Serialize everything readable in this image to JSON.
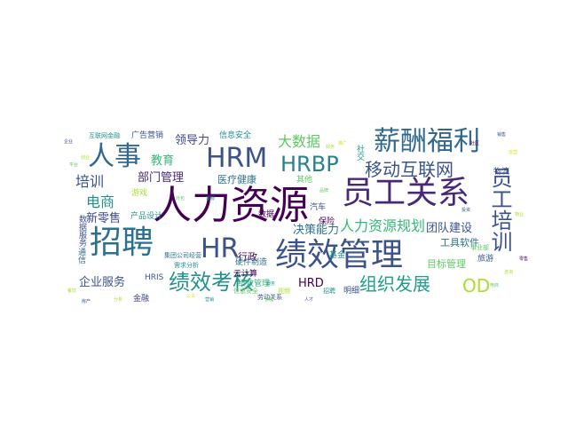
{
  "palette": {
    "c1": "#440154",
    "c2": "#3b528b",
    "c3": "#2c728e",
    "c4": "#21918c",
    "c5": "#28ae80",
    "c6": "#5ec962",
    "c7": "#addc30",
    "c8": "#d9e51e"
  },
  "words": [
    {
      "text": "人力资源",
      "color": "#440154"
    },
    {
      "text": "招聘",
      "color": "#2c728e"
    },
    {
      "text": "绩效管理",
      "color": "#3b528b"
    },
    {
      "text": "员工关系",
      "color": "#482878"
    },
    {
      "text": "HRM",
      "color": "#3b528b"
    },
    {
      "text": "人事",
      "color": "#31688e"
    },
    {
      "text": "薪酬福利",
      "color": "#31688e"
    },
    {
      "text": "HR",
      "color": "#3b528b"
    },
    {
      "text": "绩效考核",
      "color": "#21918c"
    },
    {
      "text": "HRBP",
      "color": "#26828e"
    },
    {
      "text": "员工培训",
      "color": "#3b528b"
    },
    {
      "text": "移动互联网",
      "color": "#3b528b"
    },
    {
      "text": "组织发展",
      "color": "#1f9e89"
    },
    {
      "text": "人力资源规划",
      "color": "#35b779"
    },
    {
      "text": "OD",
      "color": "#addc30"
    },
    {
      "text": "大数据",
      "color": "#5ec962"
    },
    {
      "text": "培训",
      "color": "#3b528b"
    },
    {
      "text": "电商",
      "color": "#21918c"
    },
    {
      "text": "决策能力",
      "color": "#2c728e"
    },
    {
      "text": "部门管理",
      "color": "#482878"
    },
    {
      "text": "团队建设",
      "color": "#3b528b"
    },
    {
      "text": "企业服务",
      "color": "#3b528b"
    },
    {
      "text": "新零售",
      "color": "#3e4989"
    },
    {
      "text": "HRD",
      "color": "#440154"
    },
    {
      "text": "教育",
      "color": "#35b779"
    },
    {
      "text": "领导力",
      "color": "#3e4989"
    },
    {
      "text": "医疗健康",
      "color": "#2c728e"
    },
    {
      "text": "目标管理",
      "color": "#5ec962"
    },
    {
      "text": "工具软件",
      "color": "#2c728e"
    },
    {
      "text": "行政",
      "color": "#440154"
    },
    {
      "text": "广告营销",
      "color": "#3b528b"
    },
    {
      "text": "信息安全",
      "color": "#21918c"
    },
    {
      "text": "物流",
      "color": "#3b528b"
    },
    {
      "text": "社交",
      "color": "#21918c"
    },
    {
      "text": "其他",
      "color": "#5ec962"
    },
    {
      "text": "汽车",
      "color": "#3b528b"
    },
    {
      "text": "游戏",
      "color": "#addc30"
    },
    {
      "text": "保险",
      "color": "#440154"
    },
    {
      "text": "数据服务",
      "color": "#3b528b"
    },
    {
      "text": "云计算",
      "color": "#440154"
    },
    {
      "text": "金融",
      "color": "#3e4989"
    },
    {
      "text": "产品设计",
      "color": "#21918c"
    },
    {
      "text": "硬件制造",
      "color": "#2c728e"
    },
    {
      "text": "绩效管理",
      "color": "#35b779"
    },
    {
      "text": "HRIS",
      "color": "#3b528b"
    },
    {
      "text": "通信",
      "color": "#31688e"
    },
    {
      "text": "基金",
      "color": "#21918c"
    },
    {
      "text": "旅游",
      "color": "#3b528b"
    },
    {
      "text": "明细",
      "color": "#3b528b"
    },
    {
      "text": "数据",
      "color": "#440154"
    },
    {
      "text": "互联网金融",
      "color": "#21918c"
    },
    {
      "text": "信息安全",
      "color": "#5ec962"
    },
    {
      "text": "集团公司经营",
      "color": "#2c728e"
    },
    {
      "text": "需求分析",
      "color": "#21918c"
    },
    {
      "text": "劳动关系",
      "color": "#3b528b"
    },
    {
      "text": "事业部",
      "color": "#5ec962"
    },
    {
      "text": "视频",
      "color": "#addc30"
    },
    {
      "text": "招聘",
      "color": "#21918c"
    },
    {
      "text": "企业",
      "color": "#3b528b"
    },
    {
      "text": "创业",
      "color": "#addc30"
    },
    {
      "text": "平台",
      "color": "#5ec962"
    },
    {
      "text": "销售",
      "color": "#3b528b"
    },
    {
      "text": "运营",
      "color": "#d9e51e"
    },
    {
      "text": "咨询",
      "color": "#addc30"
    },
    {
      "text": "电商",
      "color": "#5ec962"
    },
    {
      "text": "人才",
      "color": "#3b528b"
    },
    {
      "text": "管理",
      "color": "#5ec962"
    },
    {
      "text": "服务",
      "color": "#21918c"
    },
    {
      "text": "财务",
      "color": "#addc30"
    },
    {
      "text": "推广",
      "color": "#d9e51e"
    },
    {
      "text": "社区",
      "color": "#440154"
    },
    {
      "text": "客服",
      "color": "#21918c"
    },
    {
      "text": "外包",
      "color": "#5ec962"
    },
    {
      "text": "餐饮",
      "color": "#addc30"
    },
    {
      "text": "房产",
      "color": "#3b528b"
    },
    {
      "text": "分析",
      "color": "#addc30"
    },
    {
      "text": "公关",
      "color": "#d9e51e"
    },
    {
      "text": "营销",
      "color": "#21918c"
    },
    {
      "text": "品牌",
      "color": "#5ec962"
    },
    {
      "text": "投资",
      "color": "#3b528b"
    },
    {
      "text": "物业",
      "color": "#addc30"
    },
    {
      "text": "零售",
      "color": "#440154"
    }
  ]
}
